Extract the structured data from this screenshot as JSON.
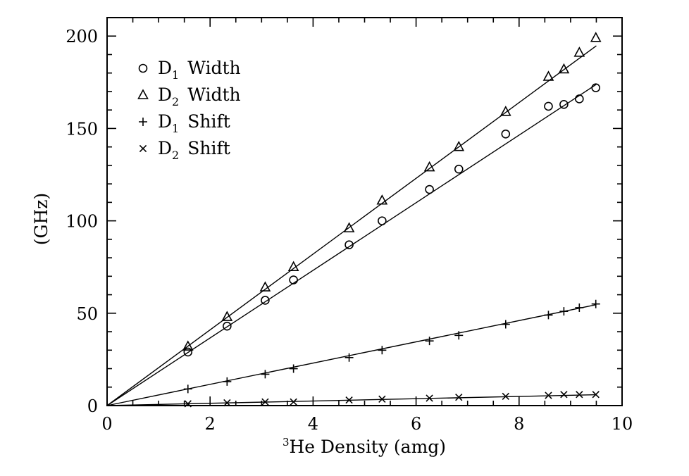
{
  "chart_data": {
    "type": "scatter",
    "title": "",
    "xlabel_sup": "3",
    "xlabel_rest": "He Density (amg)",
    "ylabel": "(GHz)",
    "xlim": [
      0,
      10
    ],
    "ylim": [
      0,
      210
    ],
    "x_ticks": [
      0,
      2,
      4,
      6,
      8,
      10
    ],
    "x_tick_labels": [
      "0",
      "2",
      "4",
      "6",
      "8",
      "10"
    ],
    "y_ticks": [
      0,
      50,
      100,
      150,
      200
    ],
    "y_tick_labels": [
      "0",
      "50",
      "100",
      "150",
      "200"
    ],
    "grid": false,
    "legend_position": "top-left",
    "series": [
      {
        "name": "D1 Width",
        "base": "D",
        "sub": "1",
        "label": "Width",
        "marker": "circle",
        "fit_slope": 18.3,
        "x": [
          1.57,
          2.33,
          3.07,
          3.62,
          4.7,
          5.34,
          6.26,
          6.83,
          7.74,
          8.57,
          8.87,
          9.17,
          9.49
        ],
        "y": [
          29,
          43,
          57,
          68,
          87,
          100,
          117,
          128,
          147,
          162,
          163,
          166,
          172
        ]
      },
      {
        "name": "D2 Width",
        "base": "D",
        "sub": "2",
        "label": "Width",
        "marker": "triangle",
        "fit_slope": 20.5,
        "x": [
          1.57,
          2.33,
          3.07,
          3.62,
          4.7,
          5.34,
          6.26,
          6.83,
          7.74,
          8.57,
          8.87,
          9.17,
          9.49
        ],
        "y": [
          32,
          48,
          64,
          75,
          96,
          111,
          129,
          140,
          159,
          178,
          182,
          191,
          199
        ]
      },
      {
        "name": "D1 Shift",
        "base": "D",
        "sub": "1",
        "label": "Shift",
        "marker": "plus",
        "fit_slope": 5.75,
        "x": [
          1.57,
          2.33,
          3.07,
          3.62,
          4.7,
          5.34,
          6.26,
          6.83,
          7.74,
          8.57,
          8.87,
          9.17,
          9.49
        ],
        "y": [
          9,
          13,
          17,
          20,
          26,
          30,
          35,
          38,
          44,
          49,
          51,
          53,
          55
        ]
      },
      {
        "name": "D2 Shift",
        "base": "D",
        "sub": "2",
        "label": "Shift",
        "marker": "cross",
        "fit_slope": 0.62,
        "x": [
          1.57,
          2.33,
          3.07,
          3.62,
          4.7,
          5.34,
          6.26,
          6.83,
          7.74,
          8.57,
          8.87,
          9.17,
          9.49
        ],
        "y": [
          1,
          1.5,
          2,
          2,
          3,
          3.5,
          4,
          4.5,
          5,
          5.5,
          6,
          6,
          6
        ]
      }
    ]
  }
}
